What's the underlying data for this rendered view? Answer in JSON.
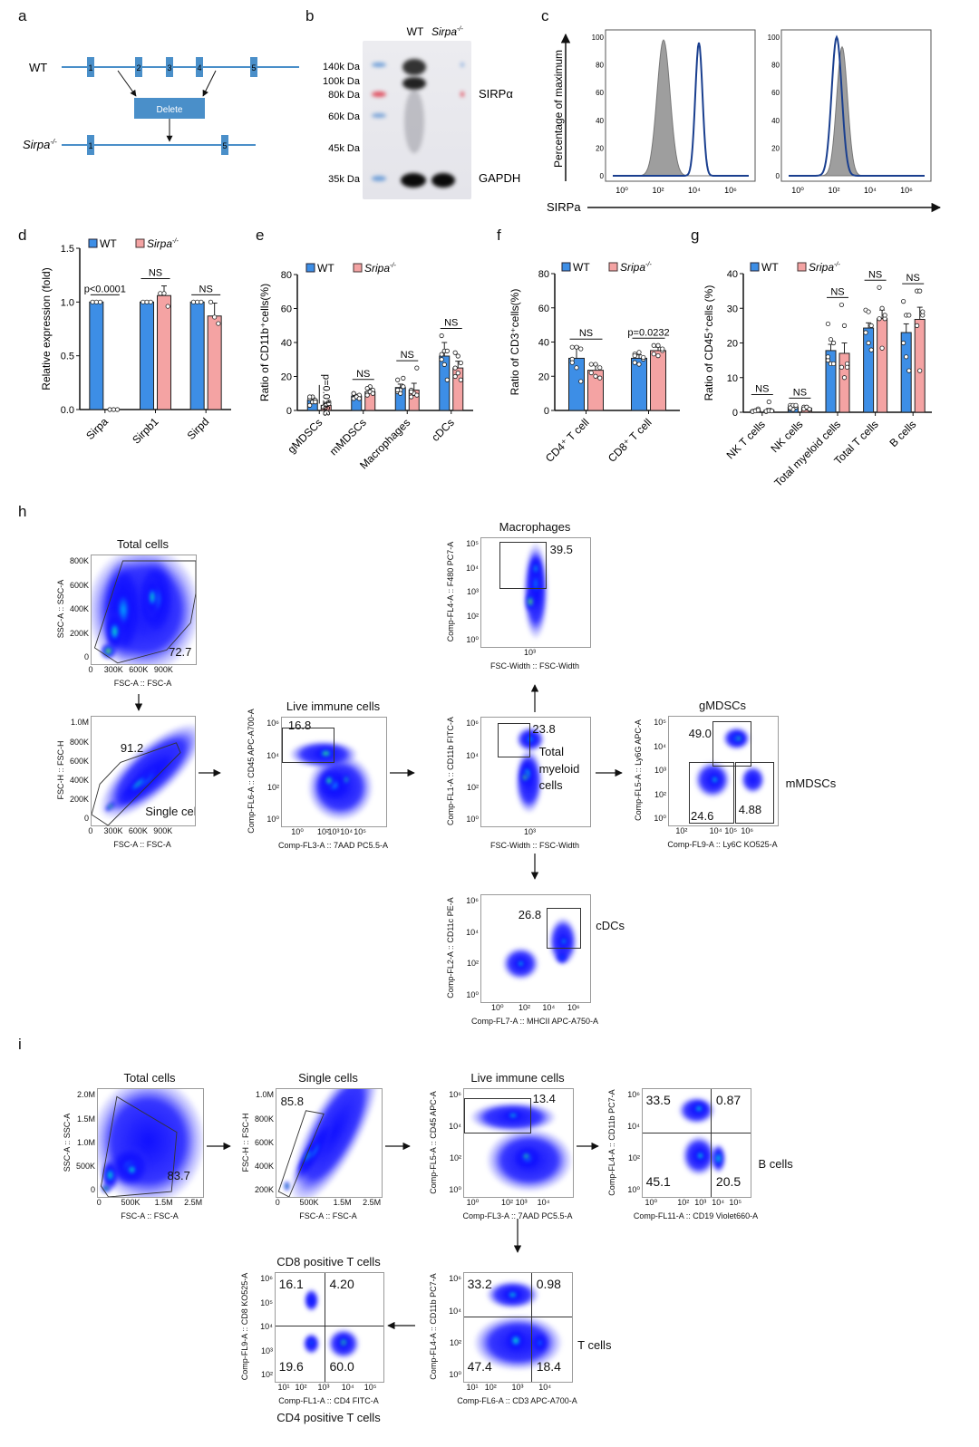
{
  "panel_labels": [
    "a",
    "b",
    "c",
    "d",
    "e",
    "f",
    "g",
    "h",
    "i"
  ],
  "panel_a": {
    "wt_label": "WT",
    "ko_label": {
      "text": "Sirpa",
      "sup": "-/-"
    },
    "wt_exons": [
      "1",
      "2",
      "3",
      "4",
      "5"
    ],
    "ko_exons": [
      "1",
      "5"
    ],
    "delete_label": "Delete",
    "color": "#4a8fc9"
  },
  "panel_b": {
    "lanes": {
      "wt": "WT",
      "ko": {
        "text": "Sirpa",
        "sup": "-/-"
      }
    },
    "markers": [
      "140k Da",
      "100k Da",
      "80k Da",
      "60k Da",
      "45k Da",
      "35k Da"
    ],
    "bands": [
      "SIRPα",
      "GAPDH"
    ]
  },
  "panel_c": {
    "ylabel": "Percentage of maximum",
    "xlabel": "SIRPa",
    "yticks": [
      "0",
      "20",
      "40",
      "60",
      "80",
      "100"
    ],
    "xticks": [
      "10⁰",
      "10²",
      "10⁴",
      "10⁶"
    ],
    "colors": {
      "control": "#9e9e9e",
      "stained": "#1a3f8f"
    },
    "histograms": [
      {
        "control_peak_log10": 2.3,
        "stained_peak_log10": 4.25
      },
      {
        "control_peak_log10": 2.45,
        "stained_peak_log10": 2.15
      }
    ]
  },
  "legend": {
    "wt": "WT",
    "colors": {
      "wt": "#3d8ee6",
      "ko": "#f4a3a3"
    }
  },
  "chart_data": [
    {
      "type": "bar",
      "panel": "d",
      "ylabel": "Relative expression (fold)",
      "ylim": [
        0,
        1.5
      ],
      "yticks": [
        "0.0",
        "0.5",
        "1.0",
        "1.5"
      ],
      "legend_ko": {
        "text": "Sirpa",
        "sup": "-/-"
      },
      "categories": [
        "Sirpa",
        "Sirpb1",
        "Sirpd"
      ],
      "series": [
        {
          "name": "WT",
          "values": [
            1.0,
            1.0,
            1.0
          ],
          "errors": [
            0,
            0,
            0
          ],
          "points": [
            [
              1,
              1,
              1
            ],
            [
              1,
              1,
              1
            ],
            [
              1,
              1,
              1
            ]
          ]
        },
        {
          "name": "Sirpa-/-",
          "values": [
            0.0,
            1.06,
            0.87
          ],
          "errors": [
            0,
            0.09,
            0.12
          ],
          "points": [
            [
              0,
              0,
              0
            ],
            [
              1.08,
              1.08,
              0.96
            ],
            [
              1.0,
              0.86,
              0.8
            ]
          ]
        }
      ],
      "annotations": [
        {
          "text": "p<0.0001"
        },
        {
          "text": "NS"
        },
        {
          "text": "NS"
        }
      ]
    },
    {
      "type": "bar",
      "panel": "e",
      "ylabel": "Ratio of CD11b⁺cells(%)",
      "ylim": [
        0,
        80
      ],
      "yticks": [
        "0",
        "20",
        "40",
        "60",
        "80"
      ],
      "legend_ko": {
        "text": "Sripa",
        "sup": "-/-"
      },
      "categories": [
        "gMDSCs",
        "mMDSCs",
        "Macrophages",
        "cDCs"
      ],
      "series": [
        {
          "name": "WT",
          "values": [
            6,
            8.5,
            13.5,
            32
          ],
          "errors": [
            1.5,
            1,
            2,
            8
          ],
          "points": [
            [
              3,
              5,
              6,
              7,
              8,
              5,
              8
            ],
            [
              7,
              8,
              9,
              10,
              8,
              7,
              10
            ],
            [
              11,
              12,
              19,
              18,
              10,
              14,
              12
            ],
            [
              44,
              35,
              35,
              30,
              27,
              18,
              33
            ]
          ]
        },
        {
          "name": "Sripa-/-",
          "values": [
            3,
            11,
            12,
            25
          ],
          "errors": [
            1,
            1.5,
            4,
            4
          ],
          "points": [
            [
              2,
              3,
              5,
              2,
              3,
              4,
              2
            ],
            [
              10,
              14,
              12,
              9,
              11,
              10,
              13
            ],
            [
              8,
              10,
              25,
              12,
              10,
              9,
              11
            ],
            [
              34,
              32,
              28,
              25,
              22,
              18,
              20
            ]
          ]
        }
      ],
      "annotations": [
        {
          "text": "p=0.0163",
          "vertical": true
        },
        {
          "text": "NS"
        },
        {
          "text": "NS"
        },
        {
          "text": "NS"
        }
      ]
    },
    {
      "type": "bar",
      "panel": "f",
      "ylabel": "Ratio of CD3⁺cells(%)",
      "ylim": [
        0,
        80
      ],
      "yticks": [
        "0",
        "20",
        "40",
        "60",
        "80"
      ],
      "legend_ko": {
        "text": "Sripa",
        "sup": "-/-"
      },
      "categories": [
        "CD4⁺ T cell",
        "CD8⁺ T cell"
      ],
      "series": [
        {
          "name": "WT",
          "values": [
            30.5,
            30.5
          ],
          "errors": [
            7,
            2
          ],
          "points": [
            [
              37,
              37,
              36,
              30,
              25,
              17,
              28
            ],
            [
              33,
              34,
              30,
              28,
              27,
              31,
              32
            ]
          ]
        },
        {
          "name": "Sripa-/-",
          "values": [
            23.5,
            35
          ],
          "errors": [
            3,
            2
          ],
          "points": [
            [
              27,
              27,
              25,
              22,
              20,
              19
            ],
            [
              38,
              38,
              35,
              33,
              32,
              36
            ]
          ]
        }
      ],
      "annotations": [
        {
          "text": "NS"
        },
        {
          "text": "p=0.0232"
        }
      ]
    },
    {
      "type": "bar",
      "panel": "g",
      "ylabel": "Ratio of CD45⁺cells (%)",
      "ylim": [
        0,
        40
      ],
      "yticks": [
        "0",
        "10",
        "20",
        "30",
        "40"
      ],
      "legend_ko": {
        "text": "Sripa",
        "sup": "-/-"
      },
      "categories": [
        "NK T cells",
        "NK cells",
        "Total myeloid cells",
        "Total T cells",
        "B cells"
      ],
      "series": [
        {
          "name": "WT",
          "values": [
            0.5,
            1.5,
            17.8,
            24.3,
            23
          ],
          "errors": [
            0.3,
            0.5,
            1.8,
            1.5,
            2.5
          ],
          "points": [
            [
              0.3,
              0.5,
              1,
              0.2,
              0.4,
              0.6
            ],
            [
              2,
              2,
              1.5,
              1,
              0.8,
              2,
              1.3
            ],
            [
              25.5,
              21,
              20,
              15,
              14,
              14,
              16
            ],
            [
              29.5,
              29,
              25,
              23,
              20,
              18
            ],
            [
              32,
              28,
              28,
              20,
              16,
              12
            ]
          ]
        },
        {
          "name": "Sripa-/-",
          "values": [
            0.6,
            1.2,
            17,
            27,
            26.8
          ],
          "errors": [
            0.5,
            0.3,
            3,
            2.5,
            3.5
          ],
          "points": [
            [
              0.2,
              3,
              0.4,
              0.3,
              0.5,
              0.4
            ],
            [
              1.5,
              1.2,
              0.8,
              1,
              1.5,
              0.9
            ],
            [
              31,
              25,
              14,
              13,
              10,
              13
            ],
            [
              36,
              30,
              27,
              27,
              18.5,
              28
            ],
            [
              35,
              35,
              28,
              25,
              12,
              29
            ]
          ]
        }
      ],
      "annotations": [
        {
          "text": "NS"
        },
        {
          "text": "NS"
        },
        {
          "text": "NS"
        },
        {
          "text": "NS"
        },
        {
          "text": "NS"
        }
      ]
    }
  ],
  "flow": {
    "h_total": {
      "title": "Total cells",
      "xlabel": "FSC-A :: FSC-A",
      "ylabel": "SSC-A :: SSC-A",
      "xticks": [
        "0",
        "300K",
        "600K",
        "900K"
      ],
      "yticks": [
        "0",
        "200K",
        "400K",
        "600K",
        "800K"
      ],
      "gates": [
        "72.7"
      ]
    },
    "h_single": {
      "side": "Single cells",
      "xlabel": "FSC-A :: FSC-A",
      "ylabel": "FSC-H :: FSC-H",
      "xticks": [
        "0",
        "300K",
        "600K",
        "900K"
      ],
      "yticks": [
        "0",
        "200K",
        "400K",
        "600K",
        "800K",
        "1.0M"
      ],
      "gates": [
        "91.2"
      ]
    },
    "h_live": {
      "title": "Live immune cells",
      "xlabel": "Comp-FL3-A :: 7AAD PC5.5-A",
      "ylabel": "Comp-FL6-A :: CD45 APC-A700-A",
      "xticks": [
        "10⁰",
        "10²",
        "10³",
        "10⁴",
        "10⁵"
      ],
      "yticks": [
        "10⁰",
        "10²",
        "10⁴",
        "10⁶"
      ],
      "gates": [
        "16.8"
      ]
    },
    "h_macro": {
      "title": "Macrophages",
      "xlabel": "FSC-Width :: FSC-Width",
      "ylabel": "Comp-FL4-A :: F480 PC7-A",
      "xticks": [
        "10³"
      ],
      "yticks": [
        "10⁰",
        "10²",
        "10³",
        "10⁴",
        "10⁵"
      ],
      "gates": [
        "39.5"
      ]
    },
    "h_myeloid": {
      "side": "Total myeloid cells",
      "xlabel": "FSC-Width :: FSC-Width",
      "ylabel": "Comp-FL1-A :: CD11b FITC-A",
      "xticks": [
        "10³"
      ],
      "yticks": [
        "10⁰",
        "10²",
        "10⁴",
        "10⁶"
      ],
      "gates": [
        "23.8"
      ]
    },
    "h_mdsc": {
      "title": "gMDSCs",
      "side": "mMDSCs",
      "xlabel": "Comp-FL9-A :: Ly6C KO525-A",
      "ylabel": "Comp-FL5-A :: Ly6G APC-A",
      "xticks": [
        "10²",
        "10⁴",
        "10⁵",
        "10⁶"
      ],
      "yticks": [
        "10⁰",
        "10²",
        "10³",
        "10⁴",
        "10⁵"
      ],
      "gates": [
        "49.0",
        "24.6",
        "4.88"
      ]
    },
    "h_cdc": {
      "side": "cDCs",
      "xlabel": "Comp-FL7-A :: MHCII APC-A750-A",
      "ylabel": "Comp-FL2-A :: CD11c PE-A",
      "xticks": [
        "10⁰",
        "10²",
        "10⁴",
        "10⁶"
      ],
      "yticks": [
        "10⁰",
        "10²",
        "10⁴",
        "10⁶"
      ],
      "gates": [
        "26.8"
      ]
    },
    "i_total": {
      "title": "Total cells",
      "xlabel": "FSC-A :: FSC-A",
      "ylabel": "SSC-A :: SSC-A",
      "xticks": [
        "0",
        "500K",
        "1.5M",
        "2.5M"
      ],
      "yticks": [
        "0",
        "500K",
        "1.0M",
        "1.5M",
        "2.0M"
      ],
      "gates": [
        "83.7"
      ]
    },
    "i_single": {
      "title": "Single cells",
      "xlabel": "FSC-A :: FSC-A",
      "ylabel": "FSC-H :: FSC-H",
      "xticks": [
        "0",
        "500K",
        "1.5M",
        "2.5M"
      ],
      "yticks": [
        "200K",
        "400K",
        "600K",
        "800K",
        "1.0M"
      ],
      "gates": [
        "85.8"
      ]
    },
    "i_live": {
      "title": "Live immune cells",
      "xlabel": "Comp-FL3-A :: 7AAD PC5.5-A",
      "ylabel": "Comp-FL5-A :: CD45 APC-A",
      "xticks": [
        "10⁰",
        "10²",
        "10³",
        "10⁴"
      ],
      "yticks": [
        "10⁰",
        "10²",
        "10⁴",
        "10⁶"
      ],
      "gates": [
        "13.4"
      ]
    },
    "i_b": {
      "side": "B cells",
      "xlabel": "Comp-FL11-A :: CD19 Violet660-A",
      "ylabel": "Comp-FL4-A :: CD11b PC7-A",
      "xticks": [
        "10⁰",
        "10²",
        "10³",
        "10⁴",
        "10⁵"
      ],
      "yticks": [
        "10⁰",
        "10²",
        "10⁴",
        "10⁶"
      ],
      "quadrants": [
        "33.5",
        "0.87",
        "45.1",
        "20.5"
      ]
    },
    "i_cd8": {
      "title": "CD8 positive T cells",
      "bottom": "CD4 positive T cells",
      "xlabel": "Comp-FL1-A :: CD4 FITC-A",
      "ylabel": "Comp-FL9-A :: CD8 KO525-A",
      "xticks": [
        "10¹",
        "10²",
        "10³",
        "10⁴",
        "10⁵"
      ],
      "yticks": [
        "10²",
        "10³",
        "10⁴",
        "10⁵",
        "10⁶"
      ],
      "quadrants": [
        "16.1",
        "4.20",
        "19.6",
        "60.0"
      ]
    },
    "i_t": {
      "side": "T cells",
      "xlabel": "Comp-FL6-A :: CD3 APC-A700-A",
      "ylabel": "Comp-FL4-A :: CD11b PC7-A",
      "xticks": [
        "10¹",
        "10²",
        "10³",
        "10⁴"
      ],
      "yticks": [
        "10⁰",
        "10²",
        "10⁴",
        "10⁶"
      ],
      "quadrants": [
        "33.2",
        "0.98",
        "47.4",
        "18.4"
      ]
    }
  }
}
